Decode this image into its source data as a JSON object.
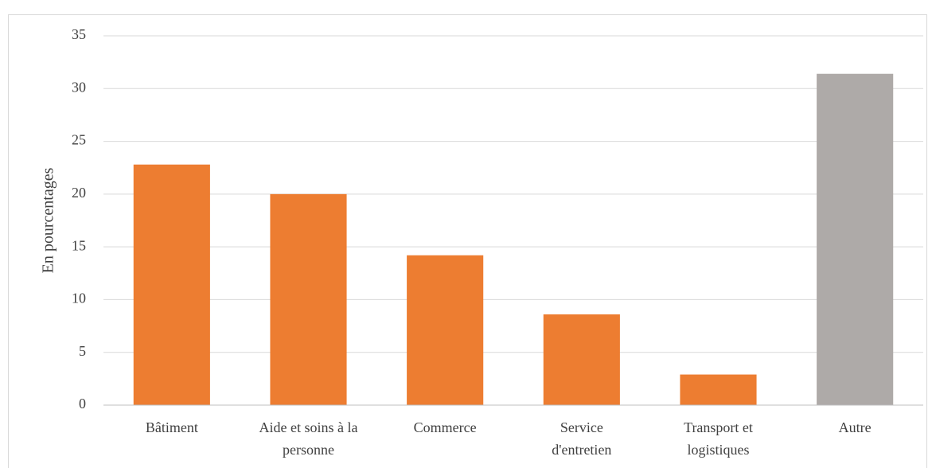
{
  "chart_data": {
    "type": "bar",
    "y_label": "En pourcentages",
    "categories": [
      "Bâtiment",
      "Aide et soins à la personne",
      "Commerce",
      "Service d'entretien",
      "Transport et logistiques",
      "Autre"
    ],
    "values": [
      22.8,
      20.0,
      14.2,
      8.6,
      2.9,
      31.4
    ],
    "colors": [
      "#ed7d31",
      "#ed7d31",
      "#ed7d31",
      "#ed7d31",
      "#ed7d31",
      "#aeaaa8"
    ],
    "ylim": [
      0,
      35
    ],
    "yticks": [
      0,
      5,
      10,
      15,
      20,
      25,
      30,
      35
    ],
    "grid": true
  }
}
